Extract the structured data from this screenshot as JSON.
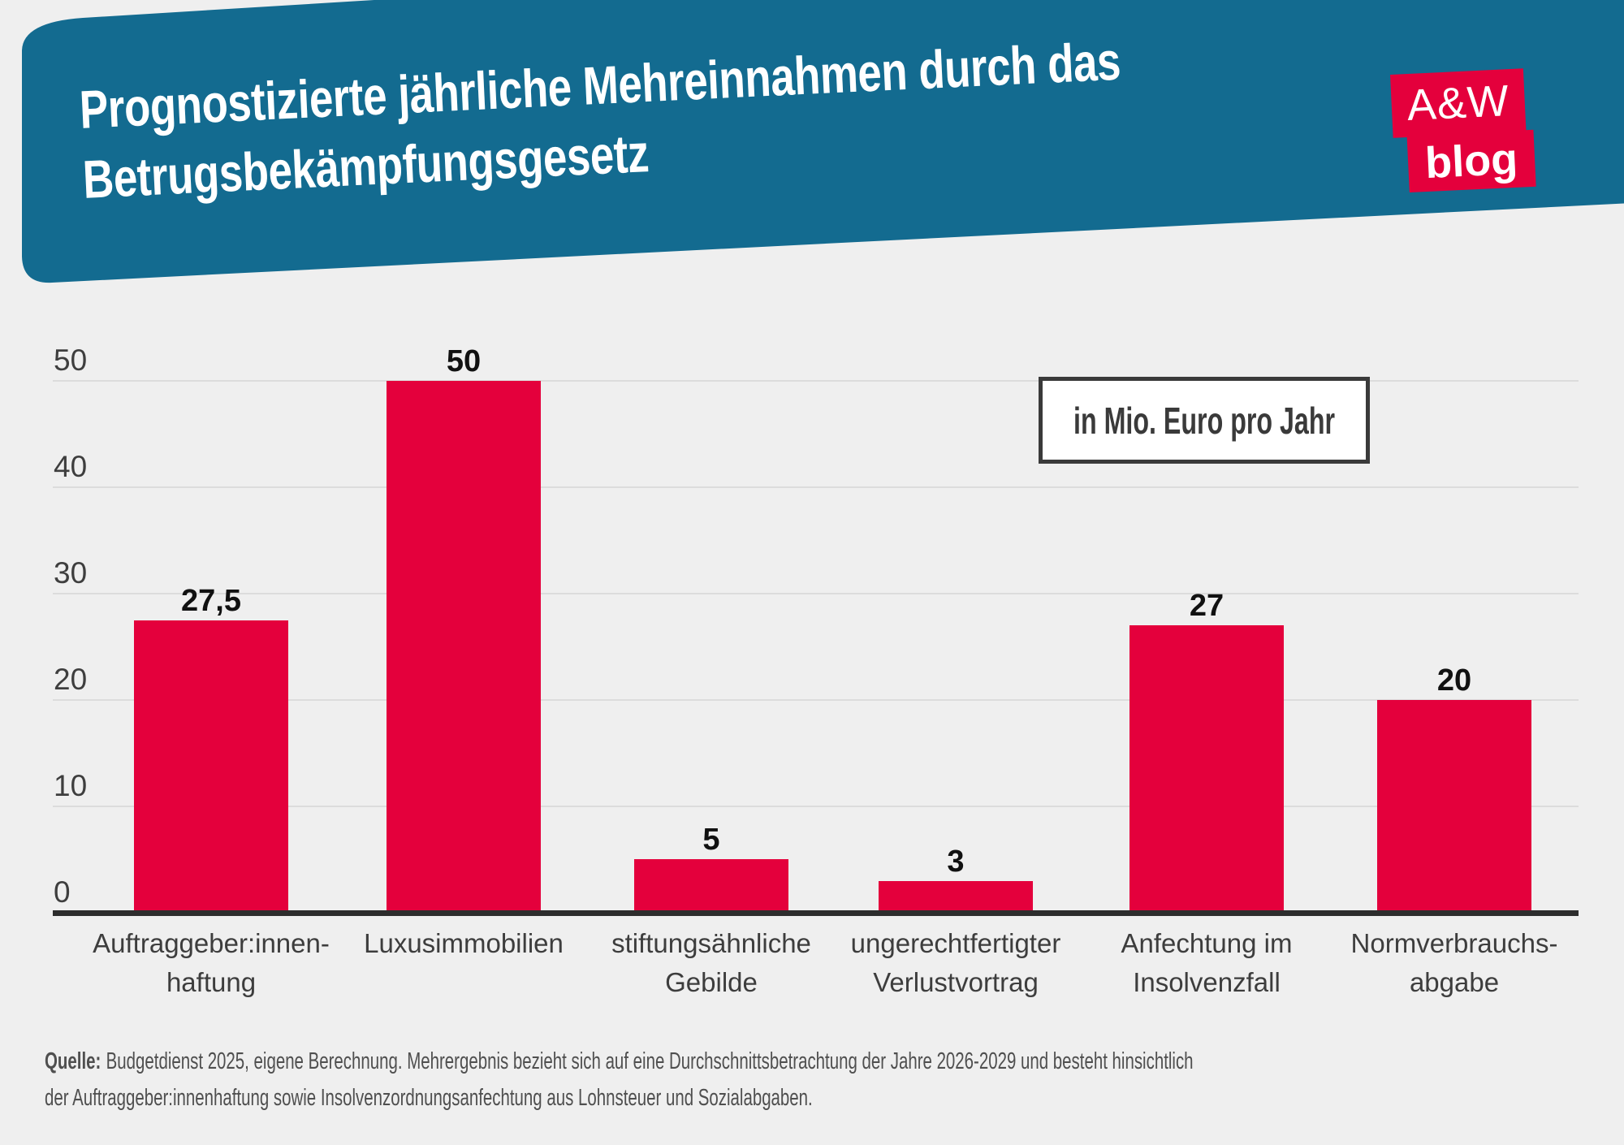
{
  "page": {
    "background": "#efefef"
  },
  "header": {
    "banner_color": "#136b90",
    "title_line1": "Prognostizierte jährliche Mehreinnahmen durch das",
    "title_line2": "Betrugsbekämpfungsgesetz",
    "logo": {
      "top": "A&W",
      "bottom": "blog",
      "color": "#e4003c"
    }
  },
  "legend": {
    "label": "in Mio. Euro pro Jahr"
  },
  "chart_data": {
    "type": "bar",
    "title": "Prognostizierte jährliche Mehreinnahmen durch das Betrugsbekämpfungsgesetz",
    "unit_label": "in Mio. Euro pro Jahr",
    "categories": [
      "Auftraggeber:innen-\nhaftung",
      "Luxusimmobilien",
      "stiftungsähnliche\nGebilde",
      "ungerechtfertigter\nVerlustvortrag",
      "Anfechtung im\nInsolvenzfall",
      "Normverbrauchs-\nabgabe"
    ],
    "values": [
      27.5,
      50,
      5,
      3,
      27,
      20
    ],
    "value_labels": [
      "27,5",
      "50",
      "5",
      "3",
      "27",
      "20"
    ],
    "y_ticks": [
      0,
      10,
      20,
      30,
      40,
      50
    ],
    "ylim": [
      0,
      50
    ],
    "grid": true,
    "legend_position": "top-right",
    "bar_color": "#e4003c",
    "xlabel": "",
    "ylabel": ""
  },
  "source": {
    "label": "Quelle:",
    "line1": "Budgetdienst 2025, eigene Berechnung. Mehrergebnis bezieht sich auf eine Durchschnittsbetrachtung der Jahre 2026-2029 und besteht hinsichtlich",
    "line2": "der Auftraggeber:innenhaftung sowie Insolvenzordnungsanfechtung aus Lohnsteuer und Sozialabgaben."
  }
}
